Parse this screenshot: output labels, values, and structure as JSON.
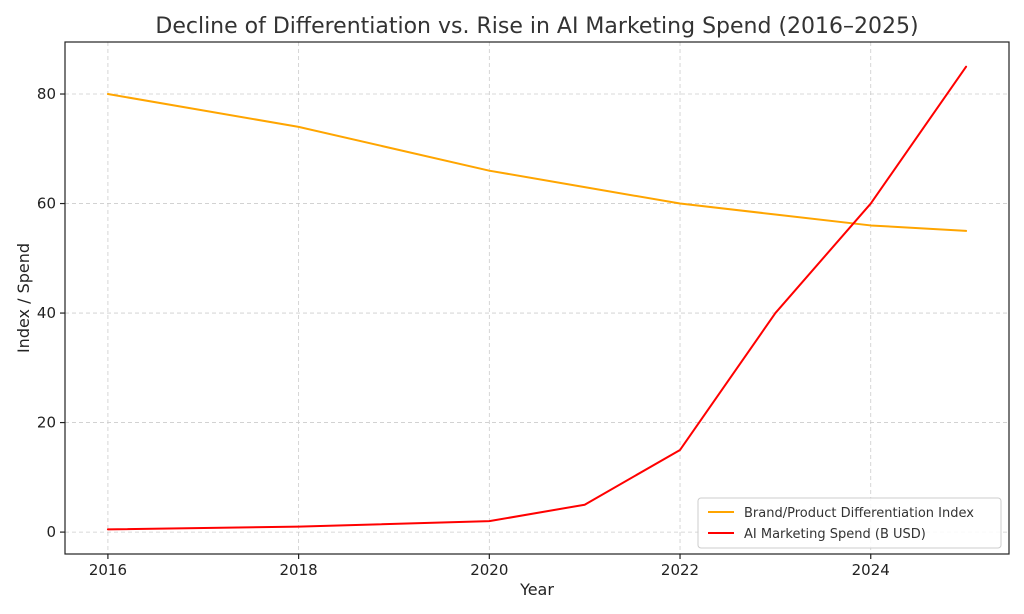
{
  "chart_data": {
    "type": "line",
    "title": "Decline of Differentiation vs. Rise in AI Marketing Spend (2016–2025)",
    "xlabel": "Year",
    "ylabel": "Index / Spend",
    "xlim": [
      2015.55,
      2025.45
    ],
    "ylim": [
      -4,
      89.5
    ],
    "xticks": [
      2016,
      2018,
      2020,
      2022,
      2024
    ],
    "xtick_labels": [
      "2016",
      "2018",
      "2020",
      "2022",
      "2024"
    ],
    "yticks": [
      0,
      20,
      40,
      60,
      80
    ],
    "ytick_labels": [
      "0",
      "20",
      "40",
      "60",
      "80"
    ],
    "grid": true,
    "legend_position": "bottom-right",
    "x": [
      2016,
      2018,
      2020,
      2021,
      2022,
      2023,
      2024,
      2025
    ],
    "series": [
      {
        "name": "Brand/Product Differentiation Index",
        "color": "#FFA500",
        "values": [
          80,
          74,
          66,
          63,
          60,
          58,
          56,
          55
        ]
      },
      {
        "name": "AI Marketing Spend (B USD)",
        "color": "#FF0000",
        "values": [
          0.5,
          1,
          2,
          5,
          15,
          40,
          60,
          85
        ]
      }
    ]
  }
}
